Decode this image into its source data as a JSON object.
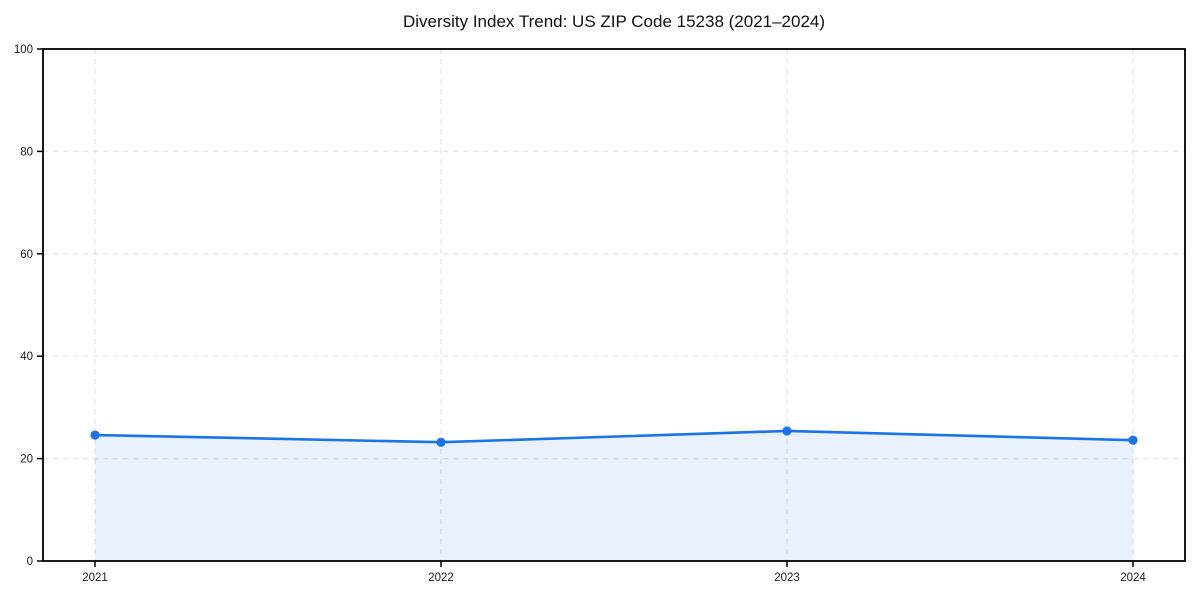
{
  "chart_data": {
    "type": "area",
    "title": "Diversity Index Trend: US ZIP Code 15238 (2021–2024)",
    "x": [
      "2021",
      "2022",
      "2023",
      "2024"
    ],
    "series": [
      {
        "name": "Diversity Index",
        "values": [
          24.6,
          23.2,
          25.4,
          23.6
        ]
      }
    ],
    "xlabel": "",
    "ylabel": "",
    "ylim": [
      0,
      100
    ],
    "yticks": [
      0,
      20,
      40,
      60,
      80,
      100
    ],
    "grid": true,
    "grid_style": "dashed",
    "legend_position": "none",
    "line_color": "#1a73e8",
    "fill_color": "rgba(26,115,232,0.10)",
    "grid_color": "#e3e3e3",
    "frame_color": "#000000",
    "marker": "circle"
  }
}
